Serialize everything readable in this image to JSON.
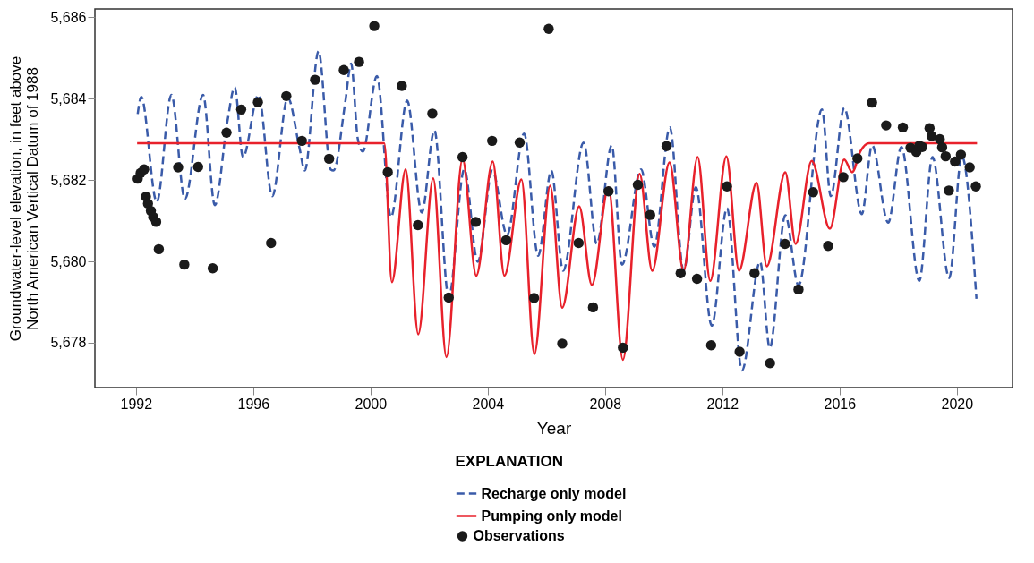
{
  "chart_data": {
    "type": "line",
    "xlabel": "Year",
    "ylabel": "Groundwater-level elevation, in feet above\nNorth American Vertical Datum of 1988",
    "legend_title": "EXPLANATION",
    "legend": "bottom",
    "grid": false,
    "xlim": [
      1990.6,
      2021.9
    ],
    "ylim": [
      5676.9,
      5686.2
    ],
    "xticks": [
      1992,
      1996,
      2000,
      2004,
      2008,
      2012,
      2016,
      2020
    ],
    "yticks": [
      {
        "value": 5678,
        "label": "5,678"
      },
      {
        "value": 5680,
        "label": "5,680"
      },
      {
        "value": 5682,
        "label": "5,682"
      },
      {
        "value": 5684,
        "label": "5,684"
      },
      {
        "value": 5686,
        "label": "5,686"
      }
    ],
    "series": [
      {
        "name": "Recharge only model",
        "type": "line",
        "line_style": "dashed",
        "color": "#3a5ba9",
        "x": [
          1992.06,
          1992.18,
          1992.71,
          1993.21,
          1993.67,
          1994.29,
          1994.69,
          1995.12,
          1995.37,
          1995.65,
          1996.18,
          1996.65,
          1997.18,
          1997.58,
          1997.76,
          1998.23,
          1998.64,
          1998.74,
          1999.14,
          1999.34,
          1999.57,
          1999.74,
          2000.22,
          2000.7,
          2001.25,
          2001.75,
          2002.18,
          2002.67,
          2003.2,
          2003.66,
          2004.16,
          2004.66,
          2005.24,
          2005.72,
          2006.17,
          2006.57,
          2007.27,
          2007.72,
          2008.23,
          2008.58,
          2009.23,
          2009.68,
          2010.21,
          2010.68,
          2011.1,
          2011.64,
          2012.16,
          2012.67,
          2013.29,
          2013.62,
          2014.15,
          2014.6,
          2015.4,
          2015.7,
          2016.16,
          2016.76,
          2017.11,
          2017.66,
          2018.11,
          2018.72,
          2019.17,
          2019.74,
          2020.17,
          2020.67
        ],
        "values": [
          5683.62,
          5684.04,
          5681.46,
          5684.09,
          5681.53,
          5684.09,
          5681.38,
          5683.44,
          5684.28,
          5682.56,
          5684.09,
          5681.6,
          5684.02,
          5682.78,
          5682.23,
          5685.16,
          5682.26,
          5682.23,
          5683.91,
          5684.86,
          5683.0,
          5682.7,
          5684.55,
          5681.09,
          5683.95,
          5681.2,
          5683.22,
          5679.11,
          5682.26,
          5679.99,
          5682.23,
          5680.65,
          5683.14,
          5680.14,
          5682.23,
          5679.77,
          5682.92,
          5680.43,
          5682.85,
          5679.92,
          5682.26,
          5680.36,
          5683.29,
          5679.77,
          5681.82,
          5678.42,
          5681.31,
          5677.32,
          5679.99,
          5677.87,
          5681.13,
          5679.41,
          5683.73,
          5681.6,
          5683.77,
          5681.16,
          5682.85,
          5680.95,
          5682.81,
          5679.52,
          5682.56,
          5679.59,
          5682.59,
          5679.08
        ]
      },
      {
        "name": "Pumping only model",
        "type": "line",
        "line_style": "solid",
        "color": "#e8212b",
        "x": [
          1992.04,
          2000.47,
          2000.73,
          2001.2,
          2001.63,
          2002.14,
          2002.59,
          2003.14,
          2003.61,
          2004.17,
          2004.57,
          2005.15,
          2005.59,
          2006.13,
          2006.54,
          2007.12,
          2007.55,
          2008.12,
          2008.61,
          2009.18,
          2009.61,
          2010.2,
          2010.68,
          2011.16,
          2011.59,
          2012.14,
          2012.57,
          2013.17,
          2013.52,
          2014.15,
          2014.5,
          2015.05,
          2015.67,
          2016.16,
          2016.43,
          2016.71,
          2017.01,
          2020.69
        ],
        "values": [
          5682.9,
          5682.9,
          5679.49,
          5682.26,
          5678.21,
          5682.04,
          5677.65,
          5682.52,
          5679.65,
          5682.45,
          5679.65,
          5682.01,
          5677.72,
          5681.86,
          5678.86,
          5681.35,
          5679.42,
          5681.82,
          5677.58,
          5682.15,
          5679.77,
          5682.43,
          5679.77,
          5682.56,
          5679.52,
          5682.58,
          5679.77,
          5681.93,
          5679.88,
          5682.19,
          5680.43,
          5682.47,
          5680.8,
          5682.5,
          5682.19,
          5682.7,
          5682.9,
          5682.9
        ]
      },
      {
        "name": "Observations",
        "type": "scatter",
        "marker": "circle",
        "color": "#1a1a1a",
        "x": [
          1992.06,
          1992.16,
          1992.28,
          1992.34,
          1992.41,
          1992.51,
          1992.59,
          1992.69,
          1992.78,
          1993.44,
          1993.65,
          1994.12,
          1994.62,
          1995.09,
          1995.59,
          1996.16,
          1996.61,
          1997.13,
          1997.66,
          1998.11,
          1998.59,
          1999.09,
          1999.61,
          2000.13,
          2000.59,
          2001.07,
          2001.62,
          2002.11,
          2002.67,
          2003.14,
          2003.59,
          2004.15,
          2004.63,
          2005.09,
          2005.58,
          2006.08,
          2006.54,
          2007.1,
          2007.59,
          2008.12,
          2008.61,
          2009.12,
          2009.54,
          2010.1,
          2010.58,
          2011.14,
          2011.62,
          2012.16,
          2012.59,
          2013.1,
          2013.63,
          2014.14,
          2014.6,
          2015.1,
          2015.61,
          2016.13,
          2016.61,
          2017.11,
          2017.59,
          2018.16,
          2018.42,
          2018.62,
          2018.72,
          2018.82,
          2019.07,
          2019.14,
          2019.42,
          2019.5,
          2019.62,
          2019.73,
          2019.94,
          2020.14,
          2020.44,
          2020.65
        ],
        "values": [
          5682.03,
          5682.17,
          5682.26,
          5681.59,
          5681.42,
          5681.24,
          5681.09,
          5680.97,
          5680.3,
          5682.31,
          5679.92,
          5682.32,
          5679.83,
          5683.16,
          5683.73,
          5683.91,
          5680.45,
          5684.06,
          5682.96,
          5684.46,
          5682.52,
          5684.7,
          5684.9,
          5685.78,
          5682.19,
          5684.31,
          5680.89,
          5683.63,
          5679.11,
          5682.56,
          5680.97,
          5682.96,
          5680.52,
          5682.92,
          5679.1,
          5685.71,
          5677.98,
          5680.45,
          5678.87,
          5681.72,
          5677.88,
          5681.88,
          5681.14,
          5682.83,
          5679.71,
          5679.57,
          5677.94,
          5681.84,
          5677.78,
          5679.71,
          5677.5,
          5680.43,
          5679.31,
          5681.7,
          5680.38,
          5682.07,
          5682.53,
          5683.9,
          5683.34,
          5683.29,
          5682.79,
          5682.69,
          5682.84,
          5682.81,
          5683.27,
          5683.08,
          5683.0,
          5682.8,
          5682.58,
          5681.74,
          5682.45,
          5682.62,
          5682.31,
          5681.84
        ]
      }
    ]
  }
}
